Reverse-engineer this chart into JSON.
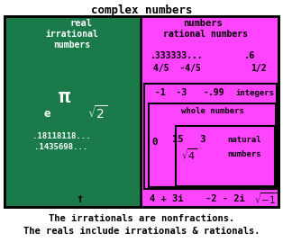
{
  "title": "complex numbers",
  "bg_color": "#ffffff",
  "green_color": "#1a7a4a",
  "magenta_color": "#ff44ff",
  "text_color": "#000000",
  "white_text": "#ffffff",
  "footer_text1": "The irrationals are nonfractions.",
  "footer_text2": "The reals include irrationals & rationals.",
  "figw": 3.14,
  "figh": 2.69,
  "dpi": 100
}
